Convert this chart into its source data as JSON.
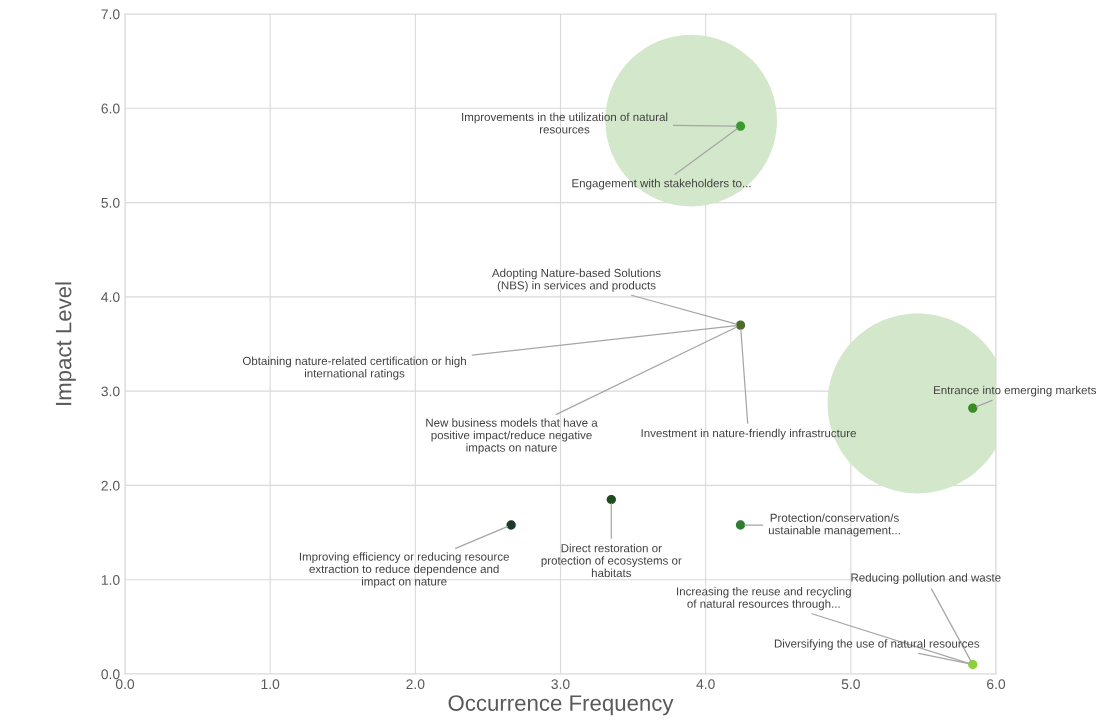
{
  "chart_data": {
    "type": "scatter",
    "xlabel": "Occurrence Frequency",
    "ylabel": "Impact Level",
    "xlim": [
      0,
      6
    ],
    "ylim": [
      0,
      7
    ],
    "xticks": [
      {
        "value": 0,
        "label": "0.0"
      },
      {
        "value": 1,
        "label": "1.0"
      },
      {
        "value": 2,
        "label": "2.0"
      },
      {
        "value": 3,
        "label": "3.0"
      },
      {
        "value": 4,
        "label": "4.0"
      },
      {
        "value": 5,
        "label": "5.0"
      },
      {
        "value": 6,
        "label": "6.0"
      }
    ],
    "yticks": [
      {
        "value": 0,
        "label": "0.0"
      },
      {
        "value": 1,
        "label": "1.0"
      },
      {
        "value": 2,
        "label": "2.0"
      },
      {
        "value": 3,
        "label": "3.0"
      },
      {
        "value": 4,
        "label": "4.0"
      },
      {
        "value": 5,
        "label": "5.0"
      },
      {
        "value": 6,
        "label": "6.0"
      },
      {
        "value": 7,
        "label": "7.0"
      }
    ],
    "grid": true,
    "legend": false,
    "marker": "circle",
    "series": [
      {
        "type": "bubble",
        "color": "#d3e7ca",
        "x": [
          3.9,
          5.46
        ],
        "values": [
          5.87,
          2.87
        ],
        "sizes": [
          0.91,
          1
        ]
      },
      {
        "x": [
          4.24,
          4.24,
          5.84,
          2.66,
          3.35,
          4.24,
          5.84
        ],
        "values": [
          5.81,
          3.7,
          2.82,
          1.58,
          1.85,
          1.58,
          0.1
        ],
        "colors": [
          "#3c9a2a",
          "#4d6b2c",
          "#3a8c22",
          "#1a3a2a",
          "#1f4d1f",
          "#2e7d32",
          "#8bd13a"
        ]
      }
    ],
    "annotations": [
      {
        "text": "Improvements in the utilization of natural\nresources",
        "x": 4.24,
        "y": 5.81
      },
      {
        "text": "Engagement with stakeholders to...",
        "x": 4.24,
        "y": 5.81
      },
      {
        "text": "Adopting Nature-based Solutions\n(NBS) in services and products",
        "x": 4.24,
        "y": 3.7
      },
      {
        "text": "Obtaining nature-related certification or high\ninternational ratings",
        "x": 4.24,
        "y": 3.7
      },
      {
        "text": "New business models that have a\npositive impact/reduce negative\nimpacts on nature",
        "x": 4.24,
        "y": 3.7
      },
      {
        "text": "Investment in nature-friendly infrastructure",
        "x": 4.24,
        "y": 3.7
      },
      {
        "text": "Entrance into emerging markets",
        "x": 5.84,
        "y": 2.82
      },
      {
        "text": "Improving efficiency or reducing resource\nextraction to reduce dependence and\nimpact on nature",
        "x": 2.66,
        "y": 1.58
      },
      {
        "text": "Direct restoration or\nprotection of ecosystems or\nhabitats",
        "x": 3.35,
        "y": 1.85
      },
      {
        "text": "Protection/conservation/s\nustainable management...",
        "x": 4.24,
        "y": 1.58
      },
      {
        "text": "Reducing pollution and waste",
        "x": 5.84,
        "y": 0.1
      },
      {
        "text": "Increasing the reuse and recycling\nof natural resources through...",
        "x": 5.84,
        "y": 0.1
      },
      {
        "text": "Diversifying the use of natural resources",
        "x": 5.84,
        "y": 0.1
      }
    ]
  }
}
